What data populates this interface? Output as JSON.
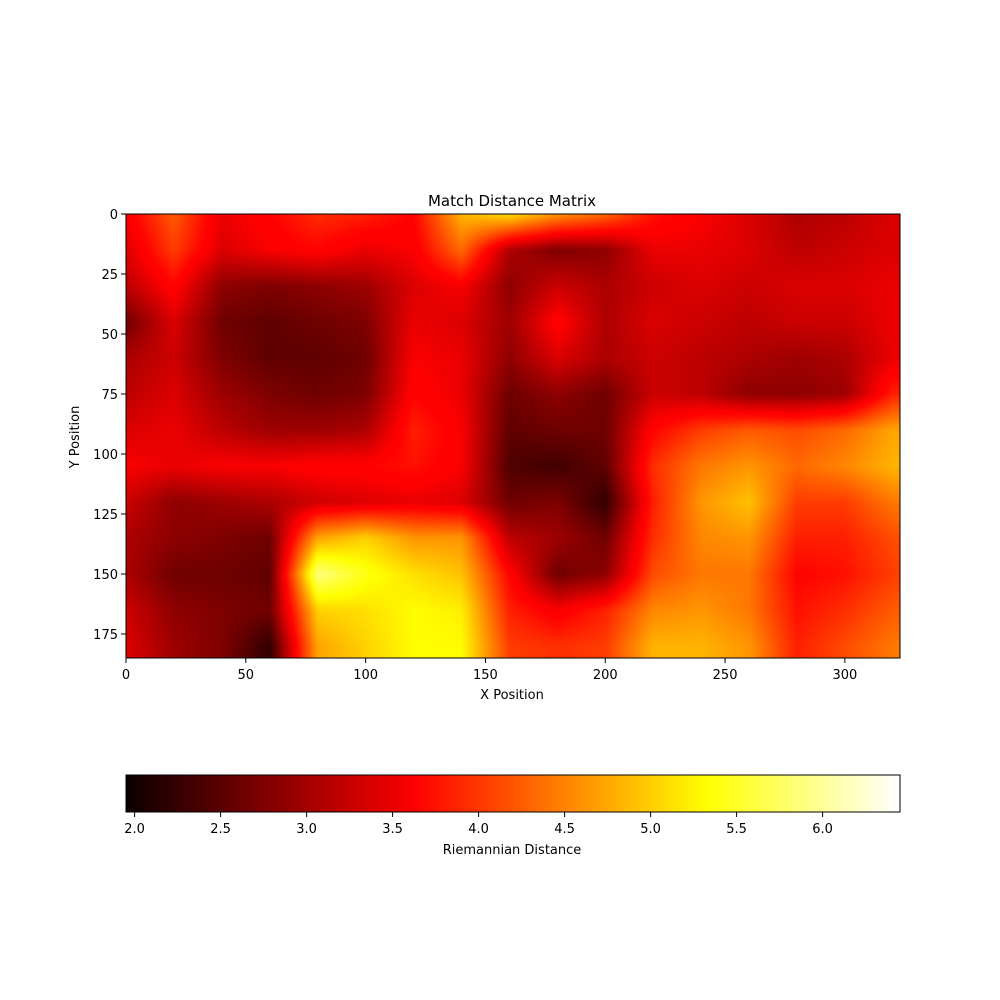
{
  "chart_data": {
    "type": "heatmap",
    "title": "Match Distance Matrix",
    "xlabel": "X Position",
    "ylabel": "Y Position",
    "colormap": "hot",
    "colorbar_label": "Riemannian Distance",
    "xlim": [
      0,
      323
    ],
    "ylim": [
      185,
      0
    ],
    "x_ticks": [
      "0",
      "50",
      "100",
      "150",
      "200",
      "250",
      "300"
    ],
    "y_ticks": [
      "0",
      "25",
      "50",
      "75",
      "100",
      "125",
      "150",
      "175"
    ],
    "colorbar_range": [
      1.95,
      6.45
    ],
    "colorbar_ticks": [
      "2.0",
      "2.5",
      "3.0",
      "3.5",
      "4.0",
      "4.5",
      "5.0",
      "5.5",
      "6.0"
    ],
    "x_centers": [
      0,
      20,
      40,
      60,
      80,
      100,
      120,
      140,
      160,
      180,
      200,
      220,
      240,
      260,
      280,
      300,
      320
    ],
    "y_centers": [
      0,
      15,
      30,
      45,
      60,
      75,
      90,
      105,
      120,
      135,
      150,
      165,
      180
    ],
    "values": [
      [
        3.5,
        4.2,
        3.4,
        3.6,
        3.9,
        3.8,
        3.6,
        4.8,
        5.1,
        4.6,
        4.3,
        3.7,
        3.5,
        3.3,
        3.0,
        3.1,
        3.3
      ],
      [
        3.3,
        4.0,
        3.3,
        3.5,
        3.6,
        3.4,
        3.5,
        4.3,
        3.0,
        2.7,
        2.8,
        3.4,
        3.4,
        3.3,
        3.1,
        3.2,
        3.3
      ],
      [
        3.1,
        3.6,
        2.8,
        2.7,
        2.8,
        2.9,
        3.3,
        3.5,
        2.8,
        3.2,
        3.0,
        3.2,
        3.3,
        3.2,
        3.3,
        3.3,
        3.4
      ],
      [
        2.6,
        3.3,
        2.6,
        2.5,
        2.6,
        2.7,
        3.4,
        3.3,
        2.9,
        3.6,
        3.0,
        3.3,
        3.2,
        3.1,
        3.2,
        3.2,
        3.4
      ],
      [
        3.0,
        3.2,
        2.7,
        2.5,
        2.5,
        2.6,
        3.5,
        3.4,
        2.8,
        3.3,
        3.0,
        3.2,
        3.1,
        3.0,
        2.9,
        3.0,
        3.4
      ],
      [
        3.1,
        3.3,
        2.9,
        2.7,
        2.6,
        2.7,
        3.6,
        3.4,
        2.6,
        2.8,
        2.6,
        3.2,
        3.1,
        2.8,
        2.8,
        2.9,
        3.8
      ],
      [
        3.3,
        3.4,
        3.1,
        2.9,
        2.9,
        3.0,
        3.8,
        3.5,
        2.5,
        2.6,
        2.6,
        3.6,
        4.0,
        4.2,
        4.1,
        4.3,
        4.7
      ],
      [
        3.5,
        3.4,
        3.5,
        3.5,
        3.6,
        3.6,
        3.7,
        3.5,
        2.4,
        2.3,
        2.5,
        3.9,
        4.4,
        4.6,
        4.3,
        4.5,
        4.8
      ],
      [
        3.2,
        2.8,
        2.9,
        3.0,
        3.2,
        3.3,
        3.4,
        3.3,
        2.6,
        2.7,
        2.2,
        3.8,
        4.6,
        4.9,
        4.0,
        4.0,
        4.4
      ],
      [
        3.0,
        2.8,
        2.7,
        2.6,
        4.7,
        5.0,
        4.6,
        4.6,
        3.1,
        2.9,
        2.6,
        3.9,
        4.5,
        4.6,
        3.8,
        3.8,
        4.1
      ],
      [
        3.0,
        2.6,
        2.6,
        2.5,
        5.9,
        5.4,
        5.1,
        4.9,
        3.6,
        2.6,
        2.8,
        4.1,
        4.4,
        4.4,
        3.6,
        3.7,
        4.0
      ],
      [
        3.2,
        2.8,
        2.7,
        2.6,
        5.0,
        5.1,
        5.3,
        5.2,
        3.8,
        3.5,
        3.8,
        4.5,
        4.6,
        4.4,
        3.7,
        3.9,
        4.2
      ],
      [
        3.3,
        2.9,
        2.7,
        2.2,
        4.7,
        5.0,
        5.3,
        5.3,
        4.0,
        3.9,
        4.0,
        4.8,
        4.8,
        4.6,
        3.8,
        4.1,
        4.4
      ]
    ]
  }
}
